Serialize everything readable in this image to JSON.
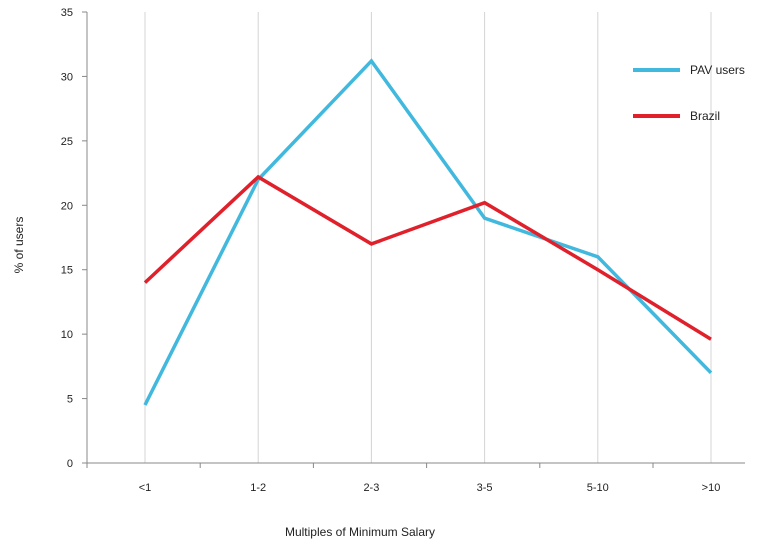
{
  "chart_data": {
    "type": "line",
    "title": "",
    "xlabel": "Multiples of Minimum Salary",
    "ylabel": "% of users",
    "categories": [
      "<1",
      "1-2",
      "2-3",
      "3-5",
      "5-10",
      ">10"
    ],
    "y_ticks": [
      "0",
      "5",
      "10",
      "15",
      "20",
      "25",
      "30",
      "35"
    ],
    "ylim": [
      0,
      35
    ],
    "grid": "vertical lines at categories",
    "legend_position": "top-right",
    "series": [
      {
        "name": "PAV users",
        "color": "#41B8DD",
        "values": [
          4.5,
          22,
          31.2,
          19,
          16,
          7
        ]
      },
      {
        "name": "Brazil",
        "color": "#E0202A",
        "values": [
          14,
          22.2,
          17,
          20.2,
          15,
          9.6
        ]
      }
    ]
  }
}
